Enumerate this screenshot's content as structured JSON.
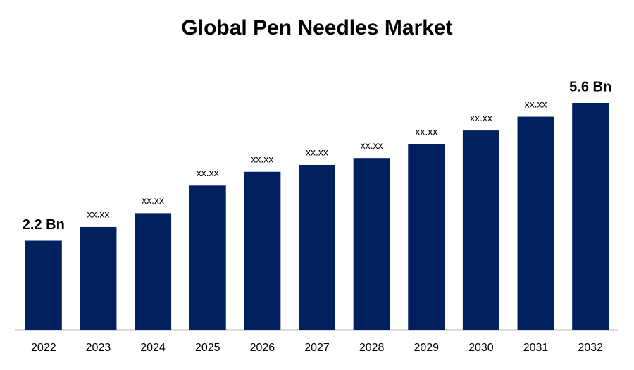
{
  "chart_data": {
    "type": "bar",
    "title": "Global Pen Needles Market",
    "categories": [
      "2022",
      "2023",
      "2024",
      "2025",
      "2026",
      "2027",
      "2028",
      "2029",
      "2030",
      "2031",
      "2032"
    ],
    "values": [
      2.2,
      2.54,
      2.88,
      3.56,
      3.9,
      4.07,
      4.24,
      4.58,
      4.92,
      5.26,
      5.6
    ],
    "value_labels": [
      "2.2 Bn",
      "xx.xx",
      "xx.xx",
      "xx.xx",
      "xx.xx",
      "xx.xx",
      "xx.xx",
      "xx.xx",
      "xx.xx",
      "xx.xx",
      "5.6 Bn"
    ],
    "color": "#002060"
  }
}
